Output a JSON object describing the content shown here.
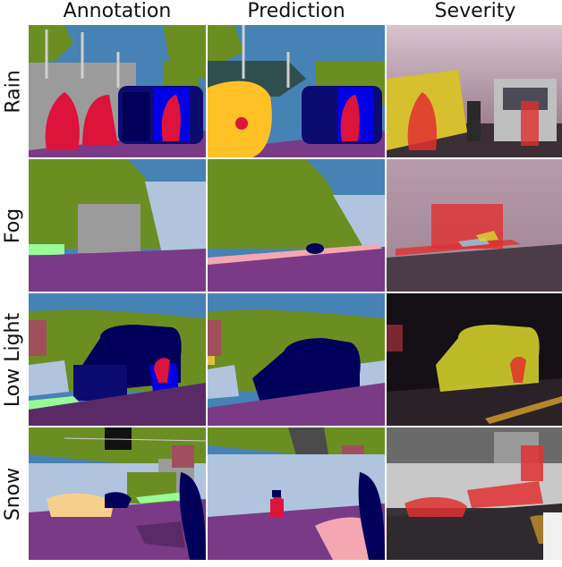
{
  "columns": [
    "Annotation",
    "Prediction",
    "Severity"
  ],
  "rows": [
    "Rain",
    "Fog",
    "Low Light",
    "Snow"
  ],
  "palette": {
    "road": "#7a3a86",
    "sidewalk": "#f4a7b0",
    "building": "#9b9b9b",
    "vegetation": "#6b8e23",
    "terrain": "#98fb98",
    "sky": "#4682b4",
    "person": "#dc143c",
    "car": "#00005a",
    "truck": "#0b0b72",
    "bus": "#0000e6",
    "motorcycle": "#0000e6",
    "pole": "#b0b0b0",
    "light-blue": "#b0c4de",
    "dog": "#f5d08a",
    "prediction-yellow": "#ffc125",
    "severity-red": "#e03030",
    "severity-yellow": "#d9d92a"
  }
}
